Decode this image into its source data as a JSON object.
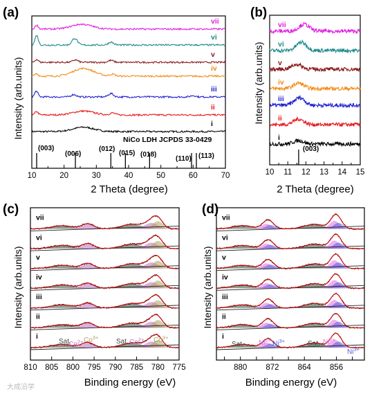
{
  "figure": {
    "colors": {
      "i": "#000000",
      "ii": "#e8191c",
      "iii": "#1f1fd0",
      "iv": "#f28c1a",
      "v": "#8b1a1a",
      "vi": "#1f8a8a",
      "vii": "#e020e0",
      "fit": "#d01010",
      "background": "#202020",
      "sat": "#3a4a3a",
      "co2": "#c070c0",
      "co3": "#b0a060",
      "ni2": "#e070e0",
      "ni3": "#5a5ae0"
    },
    "watermark": "大成沿学"
  },
  "chart_data": [
    {
      "panel": "(a)",
      "type": "line",
      "xlabel": "2 Theta (degree)",
      "ylabel": "Intensity (arb.units)",
      "xlim": [
        10,
        70
      ],
      "xticks": [
        "10",
        "20",
        "30",
        "40",
        "50",
        "60",
        "70"
      ],
      "series": [
        {
          "name": "i",
          "peaks": [
            [
              26,
              0.9
            ]
          ]
        },
        {
          "name": "ii",
          "peaks": [
            [
              11.5,
              0.7
            ],
            [
              26,
              0.8
            ],
            [
              35,
              0.4
            ]
          ]
        },
        {
          "name": "iii",
          "peaks": [
            [
              11.4,
              1.2
            ],
            [
              23,
              0.5
            ],
            [
              34.5,
              0.7
            ],
            [
              60,
              0.3
            ]
          ]
        },
        {
          "name": "iv",
          "peaks": [
            [
              11.5,
              0.5
            ],
            [
              26,
              1.6
            ],
            [
              35,
              0.4
            ]
          ]
        },
        {
          "name": "v",
          "peaks": [
            [
              11.5,
              0.6
            ],
            [
              23.5,
              0.5
            ],
            [
              34.5,
              0.4
            ]
          ]
        },
        {
          "name": "vi",
          "peaks": [
            [
              11.5,
              2.0
            ],
            [
              23.3,
              1.4
            ],
            [
              34.5,
              0.6
            ]
          ]
        },
        {
          "name": "vii",
          "peaks": [
            [
              11.5,
              0.8
            ],
            [
              25.5,
              1.0
            ]
          ]
        }
      ],
      "reference": {
        "label": "NiCo LDH JCPDS 33-0429",
        "lines": [
          {
            "x": 11.5,
            "label": "(003)"
          },
          {
            "x": 23.5,
            "label": "(006)"
          },
          {
            "x": 34.5,
            "label": "(012)"
          },
          {
            "x": 39,
            "label": "(015)"
          },
          {
            "x": 46.5,
            "label": "(018)"
          },
          {
            "x": 59.5,
            "label": "(110)"
          },
          {
            "x": 61,
            "label": "(113)"
          }
        ]
      }
    },
    {
      "panel": "(b)",
      "type": "line",
      "xlabel": "2 Theta (degree)",
      "ylabel": "Intensity (arb.units)",
      "xlim": [
        10,
        15
      ],
      "xticks": [
        "10",
        "10.5",
        "11",
        "11.5",
        "12",
        "12.5",
        "13",
        "13.5",
        "14",
        "14.5",
        "15"
      ],
      "xticks_shown": [
        "10",
        "11",
        "12",
        "13",
        "14",
        "15"
      ],
      "series": [
        {
          "name": "i",
          "peaks": [
            [
              11.6,
              0.5
            ]
          ]
        },
        {
          "name": "ii",
          "peaks": [
            [
              11.6,
              0.8
            ]
          ]
        },
        {
          "name": "iii",
          "peaks": [
            [
              11.65,
              1.1
            ]
          ]
        },
        {
          "name": "iv",
          "peaks": [
            [
              11.6,
              0.8
            ]
          ]
        },
        {
          "name": "v",
          "peaks": [
            [
              11.5,
              0.7
            ]
          ]
        },
        {
          "name": "vi",
          "peaks": [
            [
              11.75,
              1.2
            ]
          ]
        },
        {
          "name": "vii",
          "peaks": [
            [
              11.9,
              1.0
            ]
          ]
        }
      ],
      "reference": {
        "lines": [
          {
            "x": 11.6,
            "label": "(003)"
          }
        ]
      }
    },
    {
      "panel": "(c)",
      "type": "line",
      "xlabel": "Binding energy (eV)",
      "ylabel": "Intensity (arb.units)",
      "xlim": [
        810,
        775
      ],
      "xticks": [
        "810",
        "805",
        "800",
        "795",
        "790",
        "785",
        "780",
        "775"
      ],
      "series_names": [
        "i",
        "ii",
        "iii",
        "iv",
        "v",
        "vi",
        "vii"
      ],
      "peaks": [
        [
          802.5,
          0.35,
          2.5
        ],
        [
          796.5,
          0.55,
          1.4
        ],
        [
          786.0,
          0.5,
          2.5
        ],
        [
          781.5,
          0.7,
          1.5
        ],
        [
          780.0,
          0.9,
          1.2
        ]
      ],
      "annotations": [
        "Sat.",
        "Co2+",
        "Co3+",
        "Sat.",
        "Co2+",
        "Co3+"
      ]
    },
    {
      "panel": "(d)",
      "type": "line",
      "xlabel": "Binding energy (eV)",
      "ylabel": "Intensity (arb.units)",
      "xlim": [
        886,
        849
      ],
      "xticks": [
        "880",
        "872",
        "864",
        "856"
      ],
      "series_names": [
        "i",
        "ii",
        "iii",
        "iv",
        "v",
        "vi",
        "vii"
      ],
      "peaks": [
        [
          879.5,
          0.35,
          2.5
        ],
        [
          873.5,
          0.6,
          1.2
        ],
        [
          872.5,
          0.45,
          1.2
        ],
        [
          861.5,
          0.5,
          2.5
        ],
        [
          856.5,
          0.95,
          1.2
        ],
        [
          855.5,
          0.7,
          1.2
        ]
      ],
      "annotations": [
        "Sat.",
        "Ni2+",
        "Ni3+",
        "Sat.",
        "Ni2+",
        "Ni3+"
      ]
    }
  ]
}
